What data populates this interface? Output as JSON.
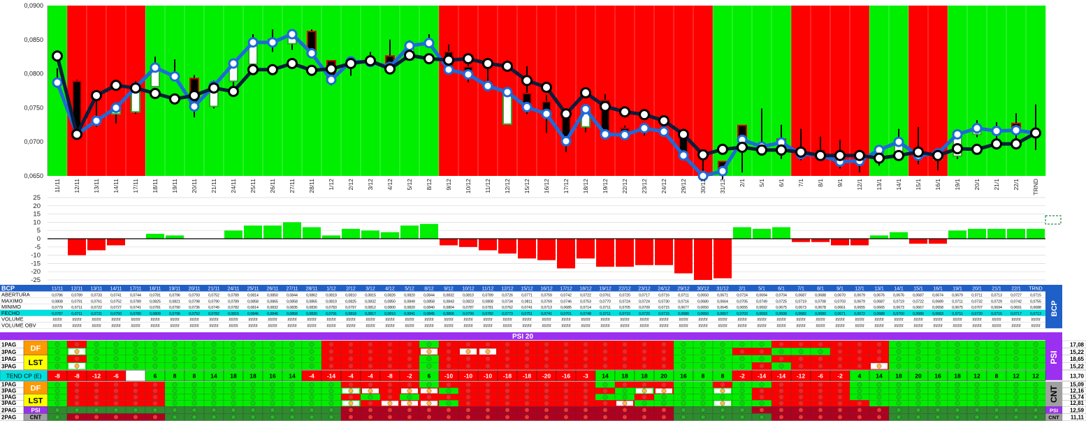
{
  "colors": {
    "up": "#00ee00",
    "down": "#ff0000",
    "close_line": "#1e6ad8",
    "trend_line": "#0b1d3c",
    "header_blue": "#1f5fc8",
    "psi_purple": "#9b30f0",
    "tend_cyan": "#00e0e0",
    "lst_yellow": "#ffff00",
    "df_orange": "#ff9900",
    "dark_green": "#2e8b2e",
    "dark_red": "#b00020"
  },
  "chart_data": [
    {
      "type": "line",
      "categories": [
        "11/11",
        "12/11",
        "13/11",
        "14/11",
        "17/11",
        "18/11",
        "19/11",
        "20/11",
        "21/11",
        "24/11",
        "25/11",
        "26/11",
        "27/11",
        "28/11",
        "1/12",
        "2/12",
        "3/12",
        "4/12",
        "5/12",
        "8/12",
        "9/12",
        "10/12",
        "11/12",
        "12/12",
        "15/12",
        "16/12",
        "17/12",
        "18/12",
        "19/12",
        "22/12",
        "23/12",
        "24/12",
        "29/12",
        "30/12",
        "31/12",
        "2/1",
        "5/1",
        "6/1",
        "7/1",
        "8/1",
        "9/1",
        "12/1",
        "13/1",
        "14/1",
        "15/1",
        "16/1",
        "19/1",
        "20/1",
        "21/1",
        "22/1",
        "TRND"
      ],
      "background_regime": [
        "G",
        "R",
        "R",
        "R",
        "R",
        "G",
        "G",
        "G",
        "G",
        "G",
        "G",
        "G",
        "G",
        "G",
        "G",
        "G",
        "G",
        "G",
        "G",
        "G",
        "R",
        "R",
        "R",
        "R",
        "R",
        "R",
        "R",
        "R",
        "R",
        "R",
        "R",
        "R",
        "R",
        "R",
        "G",
        "G",
        "G",
        "G",
        "R",
        "R",
        "R",
        "R",
        "G",
        "G",
        "R",
        "R",
        "G",
        "G",
        "G",
        "G",
        "G"
      ],
      "series": [
        {
          "name": "ABERTURA",
          "values": [
            0.0786,
            0.0789,
            0.0733,
            0.0741,
            0.0744,
            0.0781,
            0.0796,
            0.0793,
            0.0752,
            0.0789,
            0.0814,
            0.085,
            0.0844,
            0.0862,
            0.0819,
            0.081,
            0.0815,
            0.0826,
            0.082,
            0.0844,
            0.0832,
            0.081,
            0.0789,
            0.0726,
            0.0771,
            0.0759,
            0.0742,
            0.0722,
            0.0761,
            0.072,
            0.0717,
            0.0716,
            0.0711,
            0.065,
            0.0671,
            0.0724,
            0.0694,
            0.0704,
            0.0687,
            0.0688,
            0.067,
            0.0679,
            0.0676,
            0.0676,
            0.0687,
            0.0674,
            0.0679,
            0.0711,
            0.0713,
            0.0727,
            0.0715
          ]
        },
        {
          "name": "MAXIMO",
          "values": [
            0.0808,
            0.0791,
            0.0761,
            0.0752,
            0.0789,
            0.0825,
            0.0821,
            0.0798,
            0.079,
            0.0789,
            0.0858,
            0.0865,
            0.0858,
            0.0865,
            0.0819,
            0.0825,
            0.0832,
            0.085,
            0.0849,
            0.0858,
            0.0843,
            0.0823,
            0.0808,
            0.0734,
            0.0811,
            0.0769,
            0.0746,
            0.0753,
            0.077,
            0.0724,
            0.0724,
            0.073,
            0.0716,
            0.068,
            0.0664,
            0.0705,
            0.0749,
            0.0725,
            0.0719,
            0.0708,
            0.0703,
            0.0679,
            0.0687,
            0.0719,
            0.0722,
            0.0689,
            0.0711,
            0.0732,
            0.0729,
            0.0742,
            0.0755
          ]
        },
        {
          "name": "MINIMO",
          "values": [
            0.0779,
            0.0711,
            0.0722,
            0.0727,
            0.0741,
            0.0781,
            0.079,
            0.0736,
            0.0749,
            0.0782,
            0.0814,
            0.0832,
            0.0835,
            0.083,
            0.0783,
            0.0797,
            0.0812,
            0.08,
            0.082,
            0.084,
            0.0804,
            0.0787,
            0.0781,
            0.0762,
            0.0741,
            0.0713,
            0.0685,
            0.0714,
            0.0711,
            0.0705,
            0.0709,
            0.0715,
            0.0677,
            0.065,
            0.0645,
            0.0655,
            0.0692,
            0.0675,
            0.0673,
            0.0678,
            0.0661,
            0.0655,
            0.0665,
            0.0673,
            0.0667,
            0.0658,
            0.0675,
            0.0707,
            0.0694,
            0.0691,
            0.0688
          ]
        },
        {
          "name": "FECHO",
          "values": [
            0.0787,
            0.0711,
            0.0731,
            0.075,
            0.078,
            0.0809,
            0.0796,
            0.0752,
            0.0782,
            0.0815,
            0.0846,
            0.0846,
            0.0858,
            0.083,
            0.0791,
            0.0818,
            0.0817,
            0.081,
            0.0841,
            0.0845,
            0.0806,
            0.0799,
            0.0782,
            0.0773,
            0.0751,
            0.0741,
            0.0701,
            0.0748,
            0.0711,
            0.071,
            0.072,
            0.0715,
            0.068,
            0.065,
            0.0657,
            0.0703,
            0.0693,
            0.0699,
            0.0682,
            0.068,
            0.0671,
            0.0672,
            0.0688,
            0.07,
            0.068,
            0.0683,
            0.0711,
            0.072,
            0.0716,
            0.0717,
            0.0713
          ]
        },
        {
          "name": "TREND",
          "values": [
            0.0826,
            0.0711,
            0.0768,
            0.0783,
            0.0779,
            0.0771,
            0.0763,
            0.0768,
            0.0779,
            0.0774,
            0.0806,
            0.0806,
            0.0815,
            0.0805,
            0.0807,
            0.0815,
            0.0819,
            0.0807,
            0.0827,
            0.0822,
            0.082,
            0.0822,
            0.0815,
            0.0811,
            0.079,
            0.078,
            0.0741,
            0.0772,
            0.0752,
            0.0744,
            0.074,
            0.0731,
            0.0711,
            0.0681,
            0.0689,
            0.0692,
            0.0688,
            0.0688,
            0.0685,
            0.068,
            0.068,
            0.068,
            0.0676,
            0.068,
            0.0685,
            0.068,
            0.069,
            0.0689,
            0.0697,
            0.0697,
            0.0713
          ]
        }
      ],
      "ylim": [
        0.065,
        0.09
      ],
      "yticks": [
        "0,0650",
        "0,0700",
        "0,0750",
        "0,0800",
        "0,0850",
        "0,0900"
      ]
    },
    {
      "type": "bar",
      "categories": [
        "11/11",
        "12/11",
        "13/11",
        "14/11",
        "17/11",
        "18/11",
        "19/11",
        "20/11",
        "21/11",
        "24/11",
        "25/11",
        "26/11",
        "27/11",
        "28/11",
        "1/12",
        "2/12",
        "3/12",
        "4/12",
        "5/12",
        "8/12",
        "9/12",
        "10/12",
        "11/12",
        "12/12",
        "15/12",
        "16/12",
        "17/12",
        "18/12",
        "19/12",
        "22/12",
        "23/12",
        "24/12",
        "29/12",
        "30/12",
        "31/12",
        "2/1",
        "5/1",
        "6/1",
        "7/1",
        "8/1",
        "9/1",
        "12/1",
        "13/1",
        "14/1",
        "15/1",
        "16/1",
        "19/1",
        "20/1",
        "21/1",
        "22/1",
        "TRND"
      ],
      "values": [
        0,
        -10,
        -7,
        -4,
        0,
        3,
        2,
        0,
        0,
        5,
        8,
        8,
        10,
        7,
        2,
        6,
        5,
        4,
        8,
        9,
        -4,
        -5,
        -7,
        -9,
        -12,
        -13,
        -18,
        -12,
        -17,
        -17,
        -16,
        -16,
        -21,
        -25,
        -24,
        7,
        6,
        7,
        -2,
        -2,
        -4,
        -4,
        2,
        4,
        -3,
        -3,
        5,
        6,
        6,
        6,
        6
      ],
      "ylim": [
        -25,
        25
      ],
      "yticks": [
        "25",
        "20",
        "15",
        "10",
        "5",
        "0",
        "-5",
        "-10",
        "-15",
        "-20",
        "-25"
      ]
    }
  ],
  "table": {
    "corner": "BCP",
    "dates": [
      "11/11",
      "12/11",
      "13/11",
      "14/11",
      "17/11",
      "18/11",
      "19/11",
      "20/11",
      "21/11",
      "24/11",
      "25/11",
      "26/11",
      "27/11",
      "28/11",
      "1/12",
      "2/12",
      "3/12",
      "4/12",
      "5/12",
      "8/12",
      "9/12",
      "10/12",
      "11/12",
      "12/12",
      "15/12",
      "16/12",
      "17/12",
      "18/12",
      "19/12",
      "22/12",
      "23/12",
      "24/12",
      "29/12",
      "30/12",
      "31/12",
      "2/1",
      "5/1",
      "6/1",
      "7/1",
      "8/1",
      "9/1",
      "12/1",
      "13/1",
      "14/1",
      "15/1",
      "16/1",
      "19/1",
      "20/1",
      "21/1",
      "22/1",
      "TRND"
    ],
    "row_labels": [
      "ABERTURA",
      "MAXIMO",
      "MINIMO",
      "FECHO",
      "VOLUME",
      "VOLUME OBV"
    ],
    "rows": {
      "ABERTURA": [
        "0,0786",
        "0,0789",
        "0,0733",
        "0,0741",
        "0,0744",
        "0,0781",
        "0,0796",
        "0,0793",
        "0,0752",
        "0,0789",
        "0,0814",
        "0,0850",
        "0,0844",
        "0,0862",
        "0,0819",
        "0,0810",
        "0,0815",
        "0,0826",
        "0,0820",
        "0,0844",
        "0,0832",
        "0,0810",
        "0,0789",
        "0,0726",
        "0,0771",
        "0,0759",
        "0,0742",
        "0,0722",
        "0,0761",
        "0,0720",
        "0,0717",
        "0,0716",
        "0,0711",
        "0,0650",
        "0,0671",
        "0,0724",
        "0,0694",
        "0,0704",
        "0,0687",
        "0,0688",
        "0,0670",
        "0,0679",
        "0,0676",
        "0,0676",
        "0,0687",
        "0,0674",
        "0,0679",
        "0,0711",
        "0,0713",
        "0,0727",
        "0,0715"
      ],
      "MAXIMO": [
        "0,0808",
        "0,0791",
        "0,0761",
        "0,0752",
        "0,0789",
        "0,0825",
        "0,0821",
        "0,0798",
        "0,0790",
        "0,0789",
        "0,0858",
        "0,0865",
        "0,0858",
        "0,0865",
        "0,0819",
        "0,0825",
        "0,0832",
        "0,0850",
        "0,0849",
        "0,0858",
        "0,0843",
        "0,0823",
        "0,0808",
        "0,0734",
        "0,0811",
        "0,0769",
        "0,0746",
        "0,0753",
        "0,0770",
        "0,0724",
        "0,0724",
        "0,0730",
        "0,0716",
        "0,0680",
        "0,0664",
        "0,0705",
        "0,0749",
        "0,0725",
        "0,0719",
        "0,0708",
        "0,0703",
        "0,0679",
        "0,0687",
        "0,0719",
        "0,0722",
        "0,0689",
        "0,0711",
        "0,0732",
        "0,0729",
        "0,0742",
        "0,0755"
      ],
      "MINIMO": [
        "0,0779",
        "0,0711",
        "0,0722",
        "0,0727",
        "0,0741",
        "0,0781",
        "0,0790",
        "0,0736",
        "0,0749",
        "0,0782",
        "0,0814",
        "0,0832",
        "0,0835",
        "0,0830",
        "0,0783",
        "0,0797",
        "0,0812",
        "0,0800",
        "0,0820",
        "0,0840",
        "0,0804",
        "0,0787",
        "0,0781",
        "0,0762",
        "0,0741",
        "0,0713",
        "0,0685",
        "0,0714",
        "0,0711",
        "0,0705",
        "0,0709",
        "0,0715",
        "0,0677",
        "0,0650",
        "0,0645",
        "0,0655",
        "0,0692",
        "0,0675",
        "0,0673",
        "0,0678",
        "0,0661",
        "0,0655",
        "0,0665",
        "0,0673",
        "0,0667",
        "0,0658",
        "0,0675",
        "0,0707",
        "0,0694",
        "0,0691",
        "0,0688"
      ],
      "FECHO": [
        "0,0787",
        "0,0711",
        "0,0731",
        "0,0750",
        "0,0780",
        "0,0809",
        "0,0796",
        "0,0752",
        "0,0782",
        "0,0815",
        "0,0846",
        "0,0846",
        "0,0858",
        "0,0830",
        "0,0791",
        "0,0818",
        "0,0817",
        "0,0810",
        "0,0841",
        "0,0845",
        "0,0806",
        "0,0799",
        "0,0782",
        "0,0773",
        "0,0751",
        "0,0741",
        "0,0701",
        "0,0748",
        "0,0711",
        "0,0710",
        "0,0720",
        "0,0715",
        "0,0680",
        "0,0650",
        "0,0657",
        "0,0703",
        "0,0693",
        "0,0699",
        "0,0682",
        "0,0680",
        "0,0671",
        "0,0672",
        "0,0688",
        "0,0700",
        "0,0680",
        "0,0683",
        "0,0711",
        "0,0720",
        "0,0716",
        "0,0717",
        "0,0713"
      ]
    },
    "hash_value": "####",
    "side_label": "BCP"
  },
  "psi": {
    "title": "PSI 20",
    "side_label": "PSI",
    "rows": [
      {
        "page": "1PAG",
        "group": "DF",
        "right": "17,08"
      },
      {
        "page": "3PAG",
        "group": "DF",
        "right": "15,22"
      },
      {
        "page": "1PAG",
        "group": "LST",
        "right": "18,65"
      },
      {
        "page": "3PAG",
        "group": "LST",
        "right": "15,22"
      }
    ],
    "rows_pattern": [
      "GRGGGGGGGGGGGGRRRRRGRRRRRRRRRRRRGGGGGRRRRRRGGGGGGGGG",
      "GOGGGGGGGGGGGGRRRRROROORRRRRRRRRGGGRRGGGRRRGGGGGGGGG",
      "GRGGGGGGGGGGGGRRRRRGRRRRRRRRRRRRGGGGGRRRRRRGGGGGGGGG",
      "GOGGGGGGGGGGGGRRRRRGRRRRRRRRRRRRGGGGRGRRRROGGGGGGGGGG"
    ],
    "tend_label": "TEND CP (E)",
    "tend_values": [
      "-8",
      "-8",
      "-12",
      "-6",
      "",
      "6",
      "8",
      "8",
      "14",
      "18",
      "18",
      "16",
      "14",
      "-4",
      "-14",
      "-4",
      "-4",
      "-8",
      "-2",
      "6",
      "-10",
      "-10",
      "-10",
      "-18",
      "-18",
      "-20",
      "-16",
      "-3",
      "14",
      "18",
      "18",
      "20",
      "16",
      "8",
      "8",
      "-2",
      "-14",
      "-14",
      "-12",
      "-6",
      "-2",
      "4",
      "14",
      "18",
      "20",
      "16",
      "18",
      "12",
      "8",
      "12",
      "12"
    ],
    "tend_right": "13,70"
  },
  "cnt": {
    "side_label": "CNT",
    "rows": [
      {
        "page": "1PAG",
        "group": "DF",
        "right": "15,09"
      },
      {
        "page": "3PAG",
        "group": "DF",
        "right": "12,16"
      },
      {
        "page": "1PAG",
        "group": "LST",
        "right": "15,74"
      },
      {
        "page": "3PAG",
        "group": "LST",
        "right": "12,81"
      }
    ],
    "rows_pattern": [
      "GRRRRRGGGGGGGGGRRRRGRRRRRRRRGRRRGGRGGRRRRGGGGGGGGGG",
      "GRRRRRGGGGGGGGGOOROOGRRRRRRRRGOOGGOGRRRRRGGGGGGGGGG",
      "GRRRRRGGGGGGGGGRGRGRRRRRRRRRGGRGGGGGRRRRRGGGGGGGGGG",
      "GRRRRRGGGGGGGGGOROOOGRRRRRRRROGGGGOGGRRRRRGGGGGGGGGG"
    ],
    "bottom_rows": [
      {
        "page": "2PAG",
        "group": "PSI",
        "right_label": "PSI",
        "right": "12,59"
      },
      {
        "page": "2PAG",
        "group": "CNT",
        "right_label": "CNT",
        "right": "11,11"
      }
    ],
    "bottom_patterns": [
      "DDDDDDDDDDDDDDDRRRRRRRRRRRRRRRRRDDDDRRRRRRRDDDDDDDDD",
      "DRRRRRDDDDDDDDDRRRRRRRRRRRRRRRRRDDDDDRRRRRRDDDDDDDDD"
    ]
  }
}
